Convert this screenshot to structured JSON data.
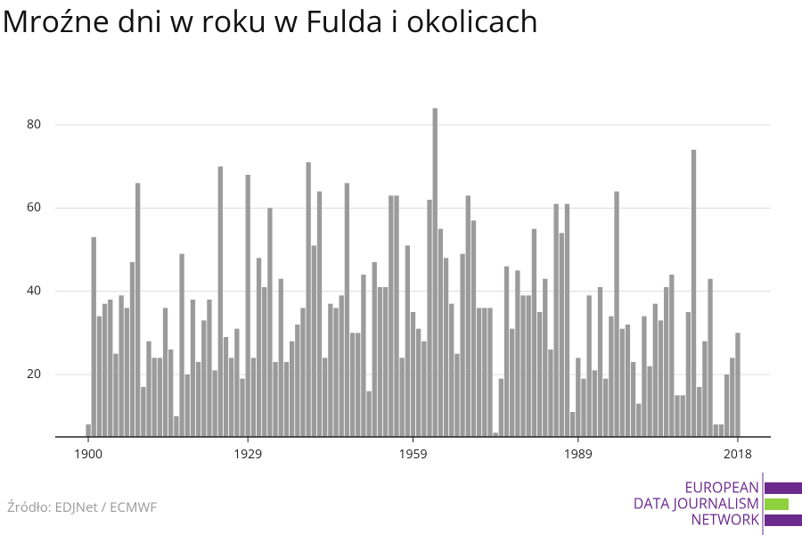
{
  "chart_data": {
    "type": "bar",
    "title": "Mroźne dni w roku w Fulda i okolicach",
    "x": [
      1900,
      1901,
      1902,
      1903,
      1904,
      1905,
      1906,
      1907,
      1908,
      1909,
      1910,
      1911,
      1912,
      1913,
      1914,
      1915,
      1916,
      1917,
      1918,
      1919,
      1920,
      1921,
      1922,
      1923,
      1924,
      1925,
      1926,
      1927,
      1928,
      1929,
      1930,
      1931,
      1932,
      1933,
      1934,
      1935,
      1936,
      1937,
      1938,
      1939,
      1940,
      1941,
      1942,
      1943,
      1944,
      1945,
      1946,
      1947,
      1948,
      1949,
      1950,
      1951,
      1952,
      1953,
      1954,
      1955,
      1956,
      1957,
      1958,
      1959,
      1960,
      1961,
      1962,
      1963,
      1964,
      1965,
      1966,
      1967,
      1968,
      1969,
      1970,
      1971,
      1972,
      1973,
      1974,
      1975,
      1976,
      1977,
      1978,
      1979,
      1980,
      1981,
      1982,
      1983,
      1984,
      1985,
      1986,
      1987,
      1988,
      1989,
      1990,
      1991,
      1992,
      1993,
      1994,
      1995,
      1996,
      1997,
      1998,
      1999,
      2000,
      2001,
      2002,
      2003,
      2004,
      2005,
      2006,
      2007,
      2008,
      2009,
      2010,
      2011,
      2012,
      2013,
      2014,
      2015,
      2016,
      2017,
      2018
    ],
    "values": [
      8,
      53,
      34,
      37,
      38,
      25,
      39,
      36,
      47,
      66,
      17,
      28,
      24,
      24,
      36,
      26,
      10,
      49,
      20,
      38,
      23,
      33,
      38,
      21,
      70,
      29,
      24,
      31,
      19,
      68,
      24,
      48,
      41,
      60,
      23,
      43,
      23,
      28,
      32,
      36,
      71,
      51,
      64,
      24,
      37,
      36,
      39,
      66,
      30,
      30,
      44,
      16,
      47,
      41,
      41,
      63,
      63,
      24,
      51,
      35,
      31,
      28,
      62,
      84,
      55,
      48,
      37,
      25,
      49,
      63,
      57,
      36,
      36,
      36,
      6,
      19,
      46,
      31,
      45,
      39,
      39,
      55,
      35,
      43,
      26,
      61,
      54,
      61,
      11,
      24,
      19,
      39,
      21,
      41,
      19,
      34,
      64,
      31,
      32,
      23,
      13,
      34,
      22,
      37,
      33,
      41,
      44,
      15,
      15,
      35,
      74,
      17,
      28,
      43,
      8,
      8,
      20,
      24,
      30
    ],
    "color": "#9b9b9b",
    "xlim": [
      1894,
      2024
    ],
    "xticks": [
      1900,
      1929,
      1959,
      1989,
      2018
    ],
    "ylim": [
      5,
      86
    ],
    "yticks": [
      20,
      40,
      60,
      80
    ],
    "grid": true
  },
  "footer": {
    "source": "Źródło: EDJNet / ECMWF",
    "logo_lines": [
      "EUROPEAN",
      "DATA JOURNALISM",
      "NETWORK"
    ]
  }
}
